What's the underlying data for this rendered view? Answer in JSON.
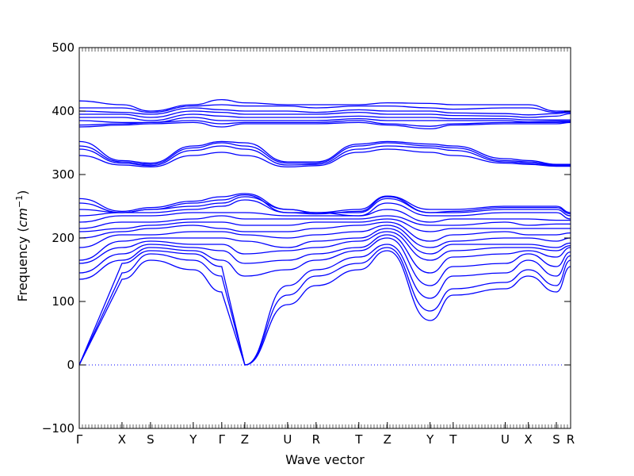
{
  "chart_data": {
    "type": "line",
    "title": "",
    "xlabel": "Wave vector",
    "ylabel": "Frequency (cm⁻¹)",
    "ylabel_parts": {
      "prefix": "Frequency (",
      "unit": "cm",
      "exponent": "−1",
      "suffix": ")"
    },
    "ylim": [
      -100,
      500
    ],
    "yticks": [
      -100,
      0,
      100,
      200,
      300,
      400,
      500
    ],
    "zero_line": true,
    "grid": false,
    "series_color": "#0000ff",
    "x_points": [
      {
        "label": "Γ",
        "pos": 0.0
      },
      {
        "label": "X",
        "pos": 0.087
      },
      {
        "label": "S",
        "pos": 0.145
      },
      {
        "label": "Y",
        "pos": 0.232
      },
      {
        "label": "Γ",
        "pos": 0.29
      },
      {
        "label": "Z",
        "pos": 0.337
      },
      {
        "label": "U",
        "pos": 0.424
      },
      {
        "label": "R",
        "pos": 0.482
      },
      {
        "label": "T",
        "pos": 0.569
      },
      {
        "label": "Z",
        "pos": 0.627
      },
      {
        "label": "Y",
        "pos": 0.714
      },
      {
        "label": "T",
        "pos": 0.761
      },
      {
        "label": "U",
        "pos": 0.867
      },
      {
        "label": "X",
        "pos": 0.914
      },
      {
        "label": "S",
        "pos": 0.971
      },
      {
        "label": "R",
        "pos": 1.0
      }
    ],
    "segment_breaks": [
      0.29
    ],
    "series": [
      {
        "values": [
          0,
          135,
          165,
          150,
          115,
          0,
          95,
          125,
          150,
          180,
          70,
          110,
          120,
          140,
          115,
          155
        ]
      },
      {
        "values": [
          0,
          145,
          175,
          165,
          140,
          0,
          110,
          140,
          160,
          185,
          85,
          120,
          130,
          150,
          125,
          165
        ]
      },
      {
        "values": [
          0,
          160,
          180,
          175,
          155,
          0,
          125,
          150,
          170,
          190,
          105,
          140,
          145,
          165,
          140,
          172
        ]
      },
      {
        "values": [
          135,
          165,
          185,
          180,
          165,
          140,
          150,
          165,
          180,
          200,
          125,
          155,
          160,
          175,
          155,
          178
        ]
      },
      {
        "values": [
          145,
          175,
          190,
          185,
          180,
          160,
          165,
          175,
          185,
          205,
          145,
          170,
          175,
          180,
          170,
          185
        ]
      },
      {
        "values": [
          160,
          185,
          195,
          190,
          190,
          175,
          180,
          185,
          195,
          210,
          165,
          180,
          185,
          185,
          180,
          188
        ]
      },
      {
        "values": [
          165,
          195,
          200,
          200,
          200,
          195,
          185,
          195,
          200,
          215,
          175,
          190,
          190,
          190,
          185,
          192
        ]
      },
      {
        "values": [
          185,
          205,
          205,
          210,
          210,
          205,
          200,
          205,
          210,
          220,
          185,
          195,
          200,
          200,
          195,
          200
        ]
      },
      {
        "values": [
          200,
          210,
          215,
          220,
          215,
          210,
          210,
          215,
          220,
          225,
          195,
          205,
          210,
          205,
          205,
          208
        ]
      },
      {
        "values": [
          210,
          215,
          220,
          225,
          225,
          220,
          220,
          225,
          225,
          230,
          210,
          215,
          215,
          215,
          215,
          215
        ]
      },
      {
        "values": [
          215,
          225,
          225,
          230,
          235,
          230,
          230,
          230,
          230,
          235,
          220,
          220,
          225,
          220,
          222,
          222
        ]
      },
      {
        "values": [
          225,
          235,
          235,
          240,
          240,
          240,
          235,
          235,
          235,
          245,
          225,
          230,
          230,
          230,
          228,
          228
        ]
      },
      {
        "values": [
          235,
          240,
          240,
          245,
          250,
          260,
          240,
          240,
          235,
          255,
          235,
          235,
          240,
          240,
          240,
          230
        ]
      },
      {
        "values": [
          245,
          240,
          245,
          250,
          255,
          265,
          245,
          240,
          240,
          262,
          240,
          240,
          245,
          245,
          245,
          235
        ]
      },
      {
        "values": [
          255,
          240,
          245,
          255,
          260,
          268,
          240,
          238,
          242,
          265,
          240,
          242,
          248,
          248,
          248,
          238
        ]
      },
      {
        "values": [
          262,
          242,
          248,
          258,
          265,
          270,
          245,
          240,
          245,
          266,
          245,
          245,
          250,
          250,
          250,
          240
        ]
      },
      {
        "values": [
          330,
          315,
          312,
          330,
          335,
          330,
          312,
          314,
          335,
          340,
          335,
          330,
          318,
          316,
          313,
          313
        ]
      },
      {
        "values": [
          340,
          318,
          314,
          338,
          345,
          340,
          315,
          316,
          340,
          345,
          342,
          338,
          320,
          318,
          314,
          314
        ]
      },
      {
        "values": [
          345,
          320,
          316,
          342,
          350,
          345,
          318,
          318,
          345,
          350,
          345,
          342,
          322,
          320,
          315,
          315
        ]
      },
      {
        "values": [
          352,
          322,
          318,
          345,
          352,
          350,
          320,
          320,
          348,
          352,
          348,
          345,
          325,
          322,
          316,
          316
        ]
      },
      {
        "values": [
          375,
          378,
          380,
          382,
          375,
          380,
          380,
          380,
          382,
          378,
          372,
          378,
          380,
          380,
          380,
          382
        ]
      },
      {
        "values": [
          378,
          380,
          382,
          385,
          380,
          382,
          382,
          382,
          385,
          380,
          376,
          380,
          382,
          382,
          382,
          383
        ]
      },
      {
        "values": [
          385,
          382,
          382,
          390,
          385,
          385,
          385,
          385,
          388,
          385,
          385,
          385,
          385,
          383,
          384,
          384
        ]
      },
      {
        "values": [
          390,
          390,
          385,
          395,
          392,
          390,
          390,
          390,
          392,
          390,
          390,
          388,
          388,
          386,
          386,
          386
        ]
      },
      {
        "values": [
          395,
          395,
          390,
          400,
          398,
          395,
          395,
          395,
          398,
          395,
          395,
          393,
          392,
          390,
          392,
          396
        ]
      },
      {
        "values": [
          400,
          398,
          395,
          405,
          402,
          400,
          400,
          398,
          402,
          400,
          400,
          397,
          396,
          394,
          396,
          398
        ]
      },
      {
        "values": [
          405,
          405,
          398,
          408,
          410,
          408,
          408,
          405,
          408,
          408,
          405,
          403,
          405,
          405,
          398,
          399
        ]
      },
      {
        "values": [
          416,
          410,
          400,
          410,
          418,
          413,
          410,
          410,
          410,
          413,
          412,
          410,
          410,
          410,
          400,
          400
        ]
      }
    ]
  }
}
